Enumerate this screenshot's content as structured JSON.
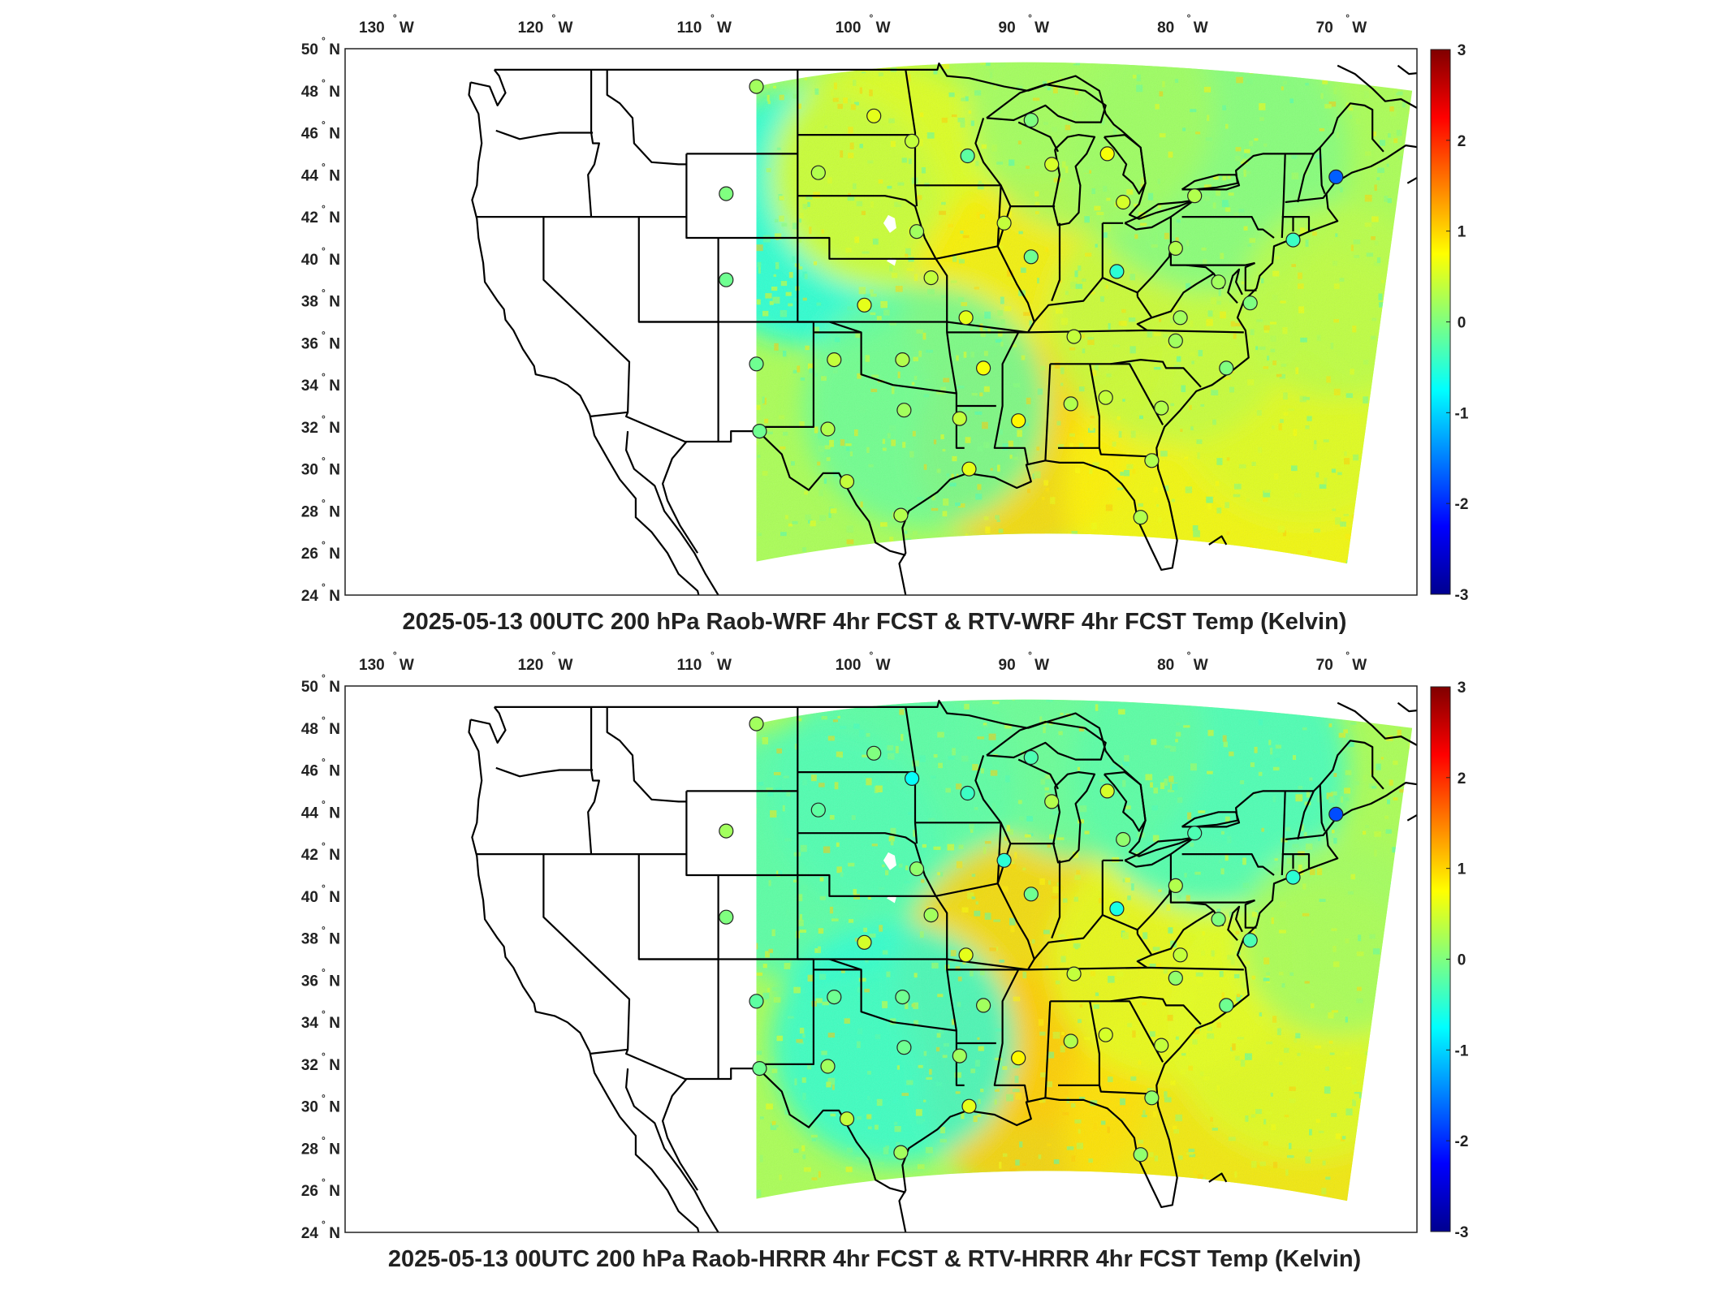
{
  "panels": [
    {
      "title": "2025-05-13 00UTC 200 hPa Raob-WRF 4hr FCST & RTV-WRF 4hr FCST Temp (Kelvin)",
      "stations": [
        {
          "lon": -106.6,
          "lat": 48.2,
          "value": 0.2
        },
        {
          "lon": -99.2,
          "lat": 46.8,
          "value": 0.6
        },
        {
          "lon": -96.8,
          "lat": 45.6,
          "value": 0.4
        },
        {
          "lon": -102.7,
          "lat": 44.1,
          "value": 0.3
        },
        {
          "lon": -93.3,
          "lat": 44.9,
          "value": -0.2
        },
        {
          "lon": -89.3,
          "lat": 46.6,
          "value": 0.0
        },
        {
          "lon": -84.5,
          "lat": 45.0,
          "value": 0.7
        },
        {
          "lon": -88.0,
          "lat": 44.5,
          "value": 0.5
        },
        {
          "lon": -108.5,
          "lat": 43.1,
          "value": 0.0
        },
        {
          "lon": -96.5,
          "lat": 41.3,
          "value": 0.2
        },
        {
          "lon": -91.0,
          "lat": 41.7,
          "value": 0.4
        },
        {
          "lon": -89.3,
          "lat": 40.1,
          "value": -0.1
        },
        {
          "lon": -83.5,
          "lat": 42.7,
          "value": 0.5
        },
        {
          "lon": -79.0,
          "lat": 43.0,
          "value": 0.3
        },
        {
          "lon": -70.1,
          "lat": 43.9,
          "value": -1.7
        },
        {
          "lon": -72.8,
          "lat": 40.9,
          "value": -0.4
        },
        {
          "lon": -80.2,
          "lat": 40.5,
          "value": 0.3
        },
        {
          "lon": -83.9,
          "lat": 39.4,
          "value": -0.5
        },
        {
          "lon": -77.5,
          "lat": 38.9,
          "value": 0.2
        },
        {
          "lon": -75.5,
          "lat": 37.9,
          "value": 0.0
        },
        {
          "lon": -108.5,
          "lat": 39.0,
          "value": -0.1
        },
        {
          "lon": -95.6,
          "lat": 39.1,
          "value": 0.4
        },
        {
          "lon": -99.8,
          "lat": 37.8,
          "value": 0.6
        },
        {
          "lon": -93.4,
          "lat": 37.2,
          "value": 0.6
        },
        {
          "lon": -86.6,
          "lat": 36.3,
          "value": 0.4
        },
        {
          "lon": -80.2,
          "lat": 36.1,
          "value": 0.2
        },
        {
          "lon": -79.9,
          "lat": 37.2,
          "value": 0.2
        },
        {
          "lon": -106.6,
          "lat": 35.0,
          "value": -0.1
        },
        {
          "lon": -101.7,
          "lat": 35.2,
          "value": 0.4
        },
        {
          "lon": -97.4,
          "lat": 35.2,
          "value": 0.3
        },
        {
          "lon": -92.3,
          "lat": 34.8,
          "value": 0.7
        },
        {
          "lon": -77.0,
          "lat": 34.8,
          "value": 0.0
        },
        {
          "lon": -106.4,
          "lat": 31.8,
          "value": -0.1
        },
        {
          "lon": -102.1,
          "lat": 31.9,
          "value": 0.3
        },
        {
          "lon": -97.3,
          "lat": 32.8,
          "value": 0.2
        },
        {
          "lon": -93.8,
          "lat": 32.4,
          "value": 0.4
        },
        {
          "lon": -90.1,
          "lat": 32.3,
          "value": 0.8
        },
        {
          "lon": -86.8,
          "lat": 33.1,
          "value": 0.3
        },
        {
          "lon": -84.6,
          "lat": 33.4,
          "value": 0.4
        },
        {
          "lon": -81.1,
          "lat": 32.9,
          "value": 0.3
        },
        {
          "lon": -100.9,
          "lat": 29.4,
          "value": 0.4
        },
        {
          "lon": -93.2,
          "lat": 30.0,
          "value": 0.6
        },
        {
          "lon": -97.5,
          "lat": 27.8,
          "value": 0.3
        },
        {
          "lon": -81.7,
          "lat": 30.4,
          "value": 0.3
        },
        {
          "lon": -82.4,
          "lat": 27.7,
          "value": 0.3
        }
      ]
    },
    {
      "title": "2025-05-13 00UTC 200 hPa Raob-HRRR 4hr FCST & RTV-HRRR 4hr FCST Temp (Kelvin)",
      "stations": [
        {
          "lon": -106.6,
          "lat": 48.2,
          "value": 0.2
        },
        {
          "lon": -99.2,
          "lat": 46.8,
          "value": 0.0
        },
        {
          "lon": -96.8,
          "lat": 45.6,
          "value": -0.7
        },
        {
          "lon": -102.7,
          "lat": 44.1,
          "value": -0.2
        },
        {
          "lon": -93.3,
          "lat": 44.9,
          "value": -0.4
        },
        {
          "lon": -89.3,
          "lat": 46.6,
          "value": -0.3
        },
        {
          "lon": -84.5,
          "lat": 45.0,
          "value": 0.5
        },
        {
          "lon": -88.0,
          "lat": 44.5,
          "value": 0.3
        },
        {
          "lon": -108.5,
          "lat": 43.1,
          "value": 0.2
        },
        {
          "lon": -96.5,
          "lat": 41.3,
          "value": 0.1
        },
        {
          "lon": -91.0,
          "lat": 41.7,
          "value": -0.5
        },
        {
          "lon": -89.3,
          "lat": 40.1,
          "value": -0.1
        },
        {
          "lon": -83.5,
          "lat": 42.7,
          "value": 0.1
        },
        {
          "lon": -79.0,
          "lat": 43.0,
          "value": -0.3
        },
        {
          "lon": -70.1,
          "lat": 43.9,
          "value": -1.8
        },
        {
          "lon": -72.8,
          "lat": 40.9,
          "value": -0.5
        },
        {
          "lon": -80.2,
          "lat": 40.5,
          "value": 0.3
        },
        {
          "lon": -83.9,
          "lat": 39.4,
          "value": -0.6
        },
        {
          "lon": -77.5,
          "lat": 38.9,
          "value": 0.0
        },
        {
          "lon": -75.5,
          "lat": 37.9,
          "value": -0.3
        },
        {
          "lon": -108.5,
          "lat": 39.0,
          "value": 0.0
        },
        {
          "lon": -95.6,
          "lat": 39.1,
          "value": 0.2
        },
        {
          "lon": -99.8,
          "lat": 37.8,
          "value": 0.5
        },
        {
          "lon": -93.4,
          "lat": 37.2,
          "value": 0.6
        },
        {
          "lon": -86.6,
          "lat": 36.3,
          "value": 0.4
        },
        {
          "lon": -80.2,
          "lat": 36.1,
          "value": 0.1
        },
        {
          "lon": -79.9,
          "lat": 37.2,
          "value": 0.4
        },
        {
          "lon": -106.6,
          "lat": 35.0,
          "value": -0.2
        },
        {
          "lon": -101.7,
          "lat": 35.2,
          "value": -0.1
        },
        {
          "lon": -97.4,
          "lat": 35.2,
          "value": -0.1
        },
        {
          "lon": -92.3,
          "lat": 34.8,
          "value": 0.2
        },
        {
          "lon": -77.0,
          "lat": 34.8,
          "value": -0.1
        },
        {
          "lon": -106.4,
          "lat": 31.8,
          "value": -0.1
        },
        {
          "lon": -102.1,
          "lat": 31.9,
          "value": 0.2
        },
        {
          "lon": -97.3,
          "lat": 32.8,
          "value": -0.1
        },
        {
          "lon": -93.8,
          "lat": 32.4,
          "value": 0.2
        },
        {
          "lon": -90.1,
          "lat": 32.3,
          "value": 0.8
        },
        {
          "lon": -86.8,
          "lat": 33.1,
          "value": 0.3
        },
        {
          "lon": -84.6,
          "lat": 33.4,
          "value": 0.5
        },
        {
          "lon": -81.1,
          "lat": 32.9,
          "value": 0.4
        },
        {
          "lon": -100.9,
          "lat": 29.4,
          "value": 0.4
        },
        {
          "lon": -93.2,
          "lat": 30.0,
          "value": 0.6
        },
        {
          "lon": -97.5,
          "lat": 27.8,
          "value": 0.2
        },
        {
          "lon": -81.7,
          "lat": 30.4,
          "value": 0.1
        },
        {
          "lon": -82.4,
          "lat": 27.7,
          "value": 0.1
        }
      ]
    }
  ],
  "lon_ticks": [
    {
      "value": -130,
      "label": "130",
      "hemi": "W"
    },
    {
      "value": -120,
      "label": "120",
      "hemi": "W"
    },
    {
      "value": -110,
      "label": "110",
      "hemi": "W"
    },
    {
      "value": -100,
      "label": "100",
      "hemi": "W"
    },
    {
      "value": -90,
      "label": "90",
      "hemi": "W"
    },
    {
      "value": -80,
      "label": "80",
      "hemi": "W"
    },
    {
      "value": -70,
      "label": "70",
      "hemi": "W"
    }
  ],
  "lat_ticks": [
    {
      "value": 50,
      "label": "50",
      "hemi": "N"
    },
    {
      "value": 48,
      "label": "48",
      "hemi": "N"
    },
    {
      "value": 46,
      "label": "46",
      "hemi": "N"
    },
    {
      "value": 44,
      "label": "44",
      "hemi": "N"
    },
    {
      "value": 42,
      "label": "42",
      "hemi": "N"
    },
    {
      "value": 40,
      "label": "40",
      "hemi": "N"
    },
    {
      "value": 38,
      "label": "38",
      "hemi": "N"
    },
    {
      "value": 36,
      "label": "36",
      "hemi": "N"
    },
    {
      "value": 34,
      "label": "34",
      "hemi": "N"
    },
    {
      "value": 32,
      "label": "32",
      "hemi": "N"
    },
    {
      "value": 30,
      "label": "30",
      "hemi": "N"
    },
    {
      "value": 28,
      "label": "28",
      "hemi": "N"
    },
    {
      "value": 26,
      "label": "26",
      "hemi": "N"
    },
    {
      "value": 24,
      "label": "24",
      "hemi": "N"
    }
  ],
  "colorbar": {
    "min": -3,
    "max": 3,
    "ticks": [
      "3",
      "2",
      "1",
      "0",
      "-1",
      "-2",
      "-3"
    ],
    "colormap": "jet"
  },
  "map_extent": {
    "lon_min": -132.5,
    "lon_max": -65,
    "lat_min": 24,
    "lat_max": 50
  }
}
